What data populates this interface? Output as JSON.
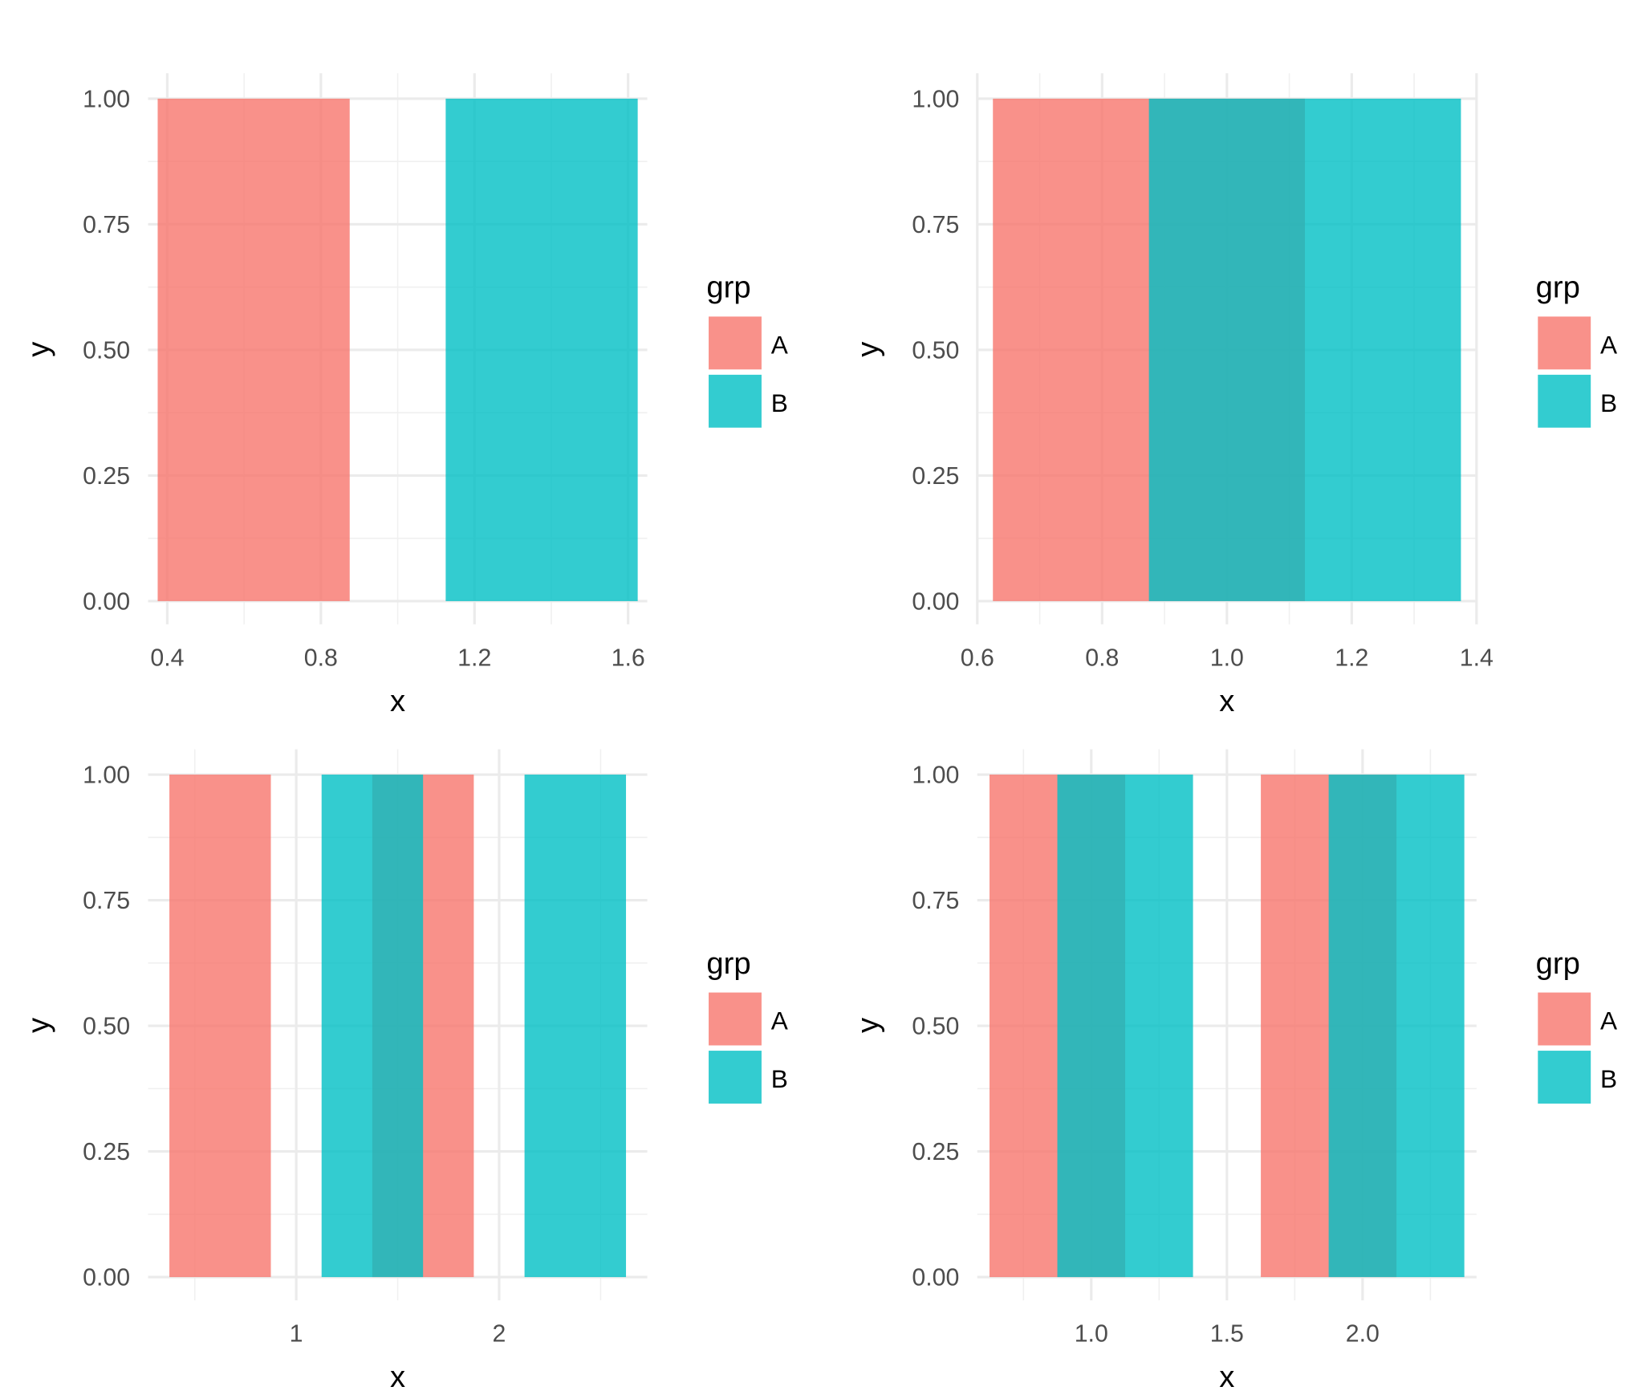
{
  "chart_data": [
    {
      "type": "bar",
      "xlabel": "x",
      "ylabel": "y",
      "legend_title": "grp",
      "legend_position": "right",
      "grid": true,
      "xlim": [
        0.35,
        1.65
      ],
      "ylim": [
        0,
        1
      ],
      "xticks": [
        "0.4",
        "0.8",
        "1.2",
        "1.6"
      ],
      "xtick_values": [
        0.4,
        0.8,
        1.2,
        1.6
      ],
      "yticks": [
        "0.00",
        "0.25",
        "0.50",
        "0.75",
        "1.00"
      ],
      "bars": [
        {
          "grp": "A",
          "xmin": 0.375,
          "xmax": 0.875,
          "y": 1
        },
        {
          "grp": "B",
          "xmin": 1.125,
          "xmax": 1.625,
          "y": 1
        }
      ]
    },
    {
      "type": "bar",
      "xlabel": "x",
      "ylabel": "y",
      "legend_title": "grp",
      "legend_position": "right",
      "grid": true,
      "xlim": [
        0.6,
        1.4
      ],
      "ylim": [
        0,
        1
      ],
      "xticks": [
        "0.6",
        "0.8",
        "1.0",
        "1.2",
        "1.4"
      ],
      "xtick_values": [
        0.6,
        0.8,
        1.0,
        1.2,
        1.4
      ],
      "yticks": [
        "0.00",
        "0.25",
        "0.50",
        "0.75",
        "1.00"
      ],
      "bars": [
        {
          "grp": "A",
          "xmin": 0.625,
          "xmax": 1.125,
          "y": 1
        },
        {
          "grp": "B",
          "xmin": 0.875,
          "xmax": 1.375,
          "y": 1
        }
      ]
    },
    {
      "type": "bar",
      "xlabel": "x",
      "ylabel": "y",
      "legend_title": "grp",
      "legend_position": "right",
      "grid": true,
      "xlim": [
        0.27,
        2.73
      ],
      "ylim": [
        0,
        1
      ],
      "xticks": [
        "1",
        "2"
      ],
      "xtick_values": [
        1,
        2
      ],
      "yticks": [
        "0.00",
        "0.25",
        "0.50",
        "0.75",
        "1.00"
      ],
      "bars": [
        {
          "grp": "A",
          "xmin": 0.375,
          "xmax": 0.875,
          "y": 1
        },
        {
          "grp": "A",
          "xmin": 1.375,
          "xmax": 1.875,
          "y": 1
        },
        {
          "grp": "B",
          "xmin": 1.125,
          "xmax": 1.625,
          "y": 1
        },
        {
          "grp": "B",
          "xmin": 2.125,
          "xmax": 2.625,
          "y": 1
        }
      ]
    },
    {
      "type": "bar",
      "xlabel": "x",
      "ylabel": "y",
      "legend_title": "grp",
      "legend_position": "right",
      "grid": true,
      "xlim": [
        0.58,
        2.42
      ],
      "ylim": [
        0,
        1
      ],
      "xticks": [
        "1.0",
        "1.5",
        "2.0"
      ],
      "xtick_values": [
        1.0,
        1.5,
        2.0
      ],
      "yticks": [
        "0.00",
        "0.25",
        "0.50",
        "0.75",
        "1.00"
      ],
      "bars": [
        {
          "grp": "A",
          "xmin": 0.625,
          "xmax": 1.125,
          "y": 1
        },
        {
          "grp": "B",
          "xmin": 0.875,
          "xmax": 1.375,
          "y": 1
        },
        {
          "grp": "A",
          "xmin": 1.625,
          "xmax": 2.125,
          "y": 1
        },
        {
          "grp": "B",
          "xmin": 1.875,
          "xmax": 2.375,
          "y": 1
        }
      ]
    }
  ],
  "legend": {
    "title": "grp",
    "items": [
      {
        "label": "A",
        "color": "#F8766D"
      },
      {
        "label": "B",
        "color": "#00BFC4"
      }
    ]
  },
  "fill_alpha": 0.8
}
